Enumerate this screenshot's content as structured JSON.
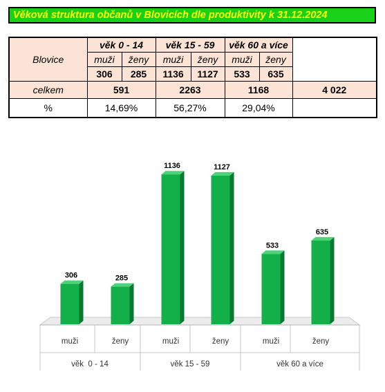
{
  "title": "Věková struktura občanů v Blovicích dle produktivity k 31.12.2024",
  "table": {
    "place": "Blovice",
    "groups": [
      "věk  0 - 14",
      "věk 15 - 59",
      "věk 60 a více"
    ],
    "sex_labels": [
      "muži",
      "ženy"
    ],
    "values": [
      "306",
      "285",
      "1136",
      "1127",
      "533",
      "635"
    ],
    "total_label": "celkem",
    "totals": [
      "591",
      "2263",
      "1168"
    ],
    "grand_total": "4 022",
    "percent_label": "%",
    "percents": [
      "14,69%",
      "56,27%",
      "29,04%"
    ]
  },
  "chart_data": {
    "type": "bar",
    "categories": [
      "muži",
      "ženy",
      "muži",
      "ženy",
      "muži",
      "ženy"
    ],
    "groups": [
      "věk  0 - 14",
      "věk 15 - 59",
      "věk 60 a více"
    ],
    "values": [
      306,
      285,
      1136,
      1127,
      533,
      635
    ],
    "ylim": [
      0,
      1200
    ],
    "grid": false,
    "legend": "none",
    "bar_color": "#13b04a",
    "bar_side_color": "#0a7a33",
    "bar_top_color": "#4fd37a"
  }
}
